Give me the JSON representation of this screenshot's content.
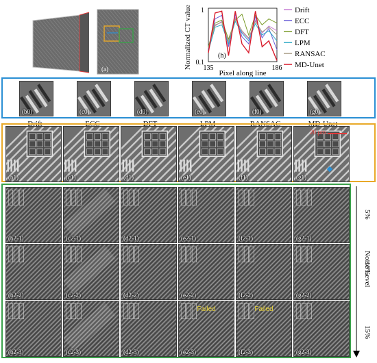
{
  "figure": {
    "panel_a_label": "(a)",
    "methods": [
      "Drift",
      "ECC",
      "DFT",
      "LPM",
      "RANSAC",
      "MD-Unet"
    ],
    "row0_labels": [
      "(b0)",
      "(c0)",
      "(d0)",
      "(e0)",
      "(f0)",
      "(g0)"
    ],
    "row1_labels": [
      "(b1)",
      "(c1)",
      "(d1)",
      "(e1)",
      "(f1)",
      "(g1)"
    ],
    "grid_labels": [
      [
        "(b2-1)",
        "(c2-1)",
        "(d2-1)",
        "(e2-1)",
        "(f2-1)",
        "(g2-1)"
      ],
      [
        "(b2-2)",
        "(c2-2)",
        "(d2-2)",
        "(e2-2)",
        "(f2-2)",
        "(g2-2)"
      ],
      [
        "(b2-3)",
        "(c2-3)",
        "(d2-3)",
        "(e2-3)",
        "(f2-3)",
        "(g2-3)"
      ]
    ],
    "failed_text": "Failed",
    "g1_annotation": "20 µm",
    "noise_axis_label": "Noise Level",
    "noise_levels": [
      "5%",
      "10%",
      "15%"
    ],
    "colors": {
      "blue_frame": "#2a8fd4",
      "orange_frame": "#e9a928",
      "green_frame": "#3aa14a",
      "failed": "#e8d23a"
    }
  },
  "chart_data": {
    "type": "line",
    "panel_label": "(h)",
    "xlabel": "Pixel along line",
    "ylabel": "Normalized CT value",
    "xlim": [
      135,
      186
    ],
    "ylim": [
      0.1,
      1
    ],
    "x_ticks": [
      "135",
      "186"
    ],
    "y_ticks": [
      "0.1",
      "1"
    ],
    "x": [
      135,
      140,
      145,
      150,
      155,
      160,
      165,
      170,
      175,
      180,
      186
    ],
    "series": [
      {
        "name": "Drift",
        "color": "#c77fd4",
        "values": [
          0.32,
          0.7,
          0.78,
          0.42,
          0.85,
          0.6,
          0.48,
          0.8,
          0.58,
          0.7,
          0.62
        ]
      },
      {
        "name": "ECC",
        "color": "#6a5fd9",
        "values": [
          0.3,
          0.82,
          0.88,
          0.35,
          0.9,
          0.52,
          0.4,
          0.86,
          0.5,
          0.66,
          0.3
        ]
      },
      {
        "name": "DFT",
        "color": "#7a9b2a",
        "values": [
          0.35,
          0.75,
          0.8,
          0.48,
          0.8,
          0.9,
          0.55,
          0.88,
          0.72,
          0.82,
          0.75
        ]
      },
      {
        "name": "LPM",
        "color": "#2aa8c4",
        "values": [
          0.28,
          0.68,
          0.72,
          0.4,
          0.78,
          0.58,
          0.45,
          0.74,
          0.55,
          0.62,
          0.45
        ]
      },
      {
        "name": "RANSAC",
        "color": "#a89c86",
        "values": [
          0.33,
          0.72,
          0.76,
          0.44,
          0.82,
          0.62,
          0.5,
          0.78,
          0.6,
          0.68,
          0.55
        ]
      },
      {
        "name": "MD-Unet",
        "color": "#d81b2b",
        "values": [
          0.25,
          0.92,
          0.95,
          0.2,
          0.95,
          0.4,
          0.25,
          0.95,
          0.35,
          0.45,
          0.12
        ]
      }
    ]
  }
}
